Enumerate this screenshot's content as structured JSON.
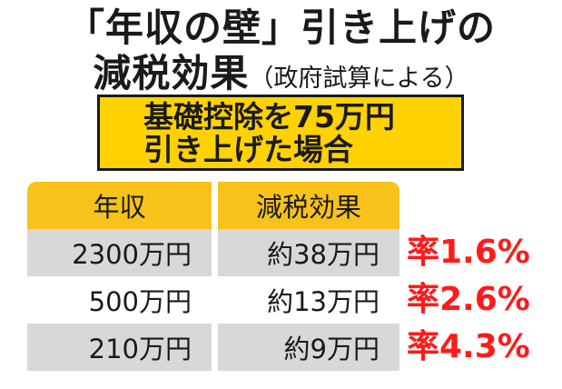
{
  "title": {
    "line1": "「年収の壁」引き上げの",
    "line2_main": "減税効果",
    "line2_sub": "（政府試算による）"
  },
  "box": {
    "line1": "基礎控除を75万円",
    "line2": "引き上げた場合"
  },
  "table": {
    "headers": [
      "年収",
      "減税効果"
    ],
    "rows": [
      {
        "income": "2300万円",
        "effect": "約38万円",
        "rate": "率1.6%"
      },
      {
        "income": "500万円",
        "effect": "約13万円",
        "rate": "率2.6%"
      },
      {
        "income": "210万円",
        "effect": "約9万円",
        "rate": "率4.3%"
      }
    ]
  },
  "colors": {
    "header": "#f7c21a",
    "box": "#ffd200",
    "row_shade": "#d8d8d8",
    "rate": "#ff1a1a"
  }
}
